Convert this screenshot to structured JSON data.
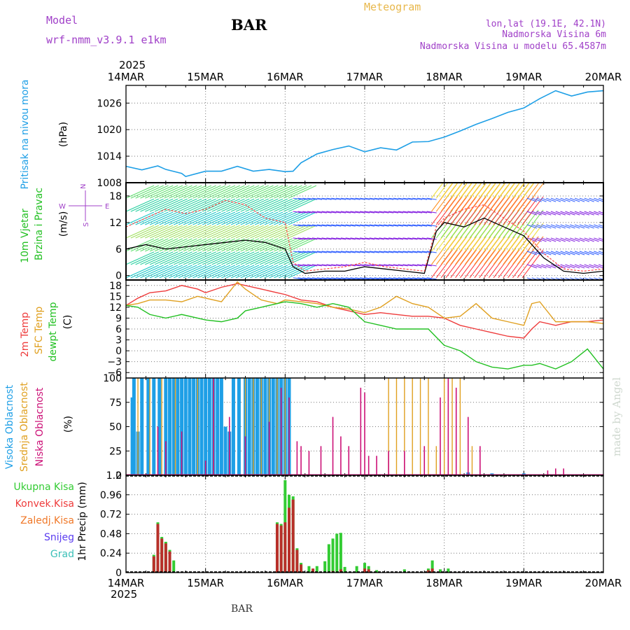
{
  "header": {
    "model_label": "Model",
    "model_name": "wrf-nmm_v3.9.1 e1km",
    "station": "BAR",
    "chart_title": "Meteogram",
    "coords": "lon,lat (19.1E, 42.1N)",
    "elevation": "Nadmorska Visina 6m",
    "model_elevation": "Nadmorska Visina u modelu 65.4587m",
    "footer_station": "BAR",
    "watermark": "made by Angel"
  },
  "colors": {
    "pressure": "#1e9fe6",
    "temp2m": "#ee3b3b",
    "sfc_temp": "#e0a020",
    "dewpt": "#22c022",
    "cloud_high": "#1e9fe6",
    "cloud_mid": "#e0a020",
    "cloud_low": "#cc1177",
    "precip_total": "#33cc33",
    "precip_conv": "#b8302a",
    "label_purple": "#a040c8",
    "label_orange": "#e8b84c"
  },
  "chart_data": [
    {
      "type": "line",
      "panel": "pressure",
      "ylabel": [
        "Pritisak na nivou mora",
        "(hPa)"
      ],
      "ylim": [
        1008,
        1030
      ],
      "yticks": [
        "1008",
        "1014",
        "1020",
        "1026"
      ],
      "x_unit": "days since 14MAR",
      "x": [
        0,
        0.2,
        0.4,
        0.5,
        0.7,
        0.75,
        1.0,
        1.2,
        1.4,
        1.6,
        1.8,
        2.0,
        2.1,
        2.2,
        2.4,
        2.6,
        2.8,
        3.0,
        3.2,
        3.4,
        3.6,
        3.8,
        4.0,
        4.2,
        4.4,
        4.6,
        4.8,
        5.0,
        5.2,
        5.4,
        5.6,
        5.8,
        6.0
      ],
      "series": [
        {
          "name": "Pritisak na nivou mora",
          "values": [
            1011.7,
            1010.9,
            1011.8,
            1011.0,
            1010.1,
            1009.4,
            1010.6,
            1010.6,
            1011.7,
            1010.6,
            1011.0,
            1010.5,
            1010.6,
            1012.5,
            1014.5,
            1015.5,
            1016.3,
            1015.0,
            1015.9,
            1015.4,
            1017.2,
            1017.3,
            1018.3,
            1019.7,
            1021.2,
            1022.5,
            1023.9,
            1024.9,
            1027.0,
            1028.8,
            1027.6,
            1028.5,
            1028.8
          ]
        }
      ]
    },
    {
      "type": "line",
      "panel": "wind",
      "ylabel": [
        "10m Vjetar",
        "Brzina i Pravac",
        "(m/s)"
      ],
      "ylim": [
        -1,
        21
      ],
      "yticks": [
        "0",
        "6",
        "12",
        "18"
      ],
      "compass": [
        "N",
        "W",
        "E",
        "S"
      ],
      "x_unit": "days since 14MAR",
      "x": [
        0,
        0.25,
        0.5,
        0.75,
        1.0,
        1.25,
        1.5,
        1.75,
        2.0,
        2.1,
        2.25,
        2.5,
        2.75,
        3.0,
        3.25,
        3.5,
        3.75,
        3.9,
        4.0,
        4.25,
        4.5,
        4.75,
        5.0,
        5.25,
        5.5,
        5.75,
        6.0
      ],
      "series": [
        {
          "name": "speed",
          "values": [
            6,
            7,
            6,
            6.5,
            7,
            7.5,
            8,
            7.5,
            6,
            2,
            0.5,
            1,
            1,
            2,
            1.5,
            1,
            0.5,
            10,
            12,
            11,
            13,
            11,
            9,
            4,
            1,
            0.5,
            1
          ]
        },
        {
          "name": "gust",
          "values": [
            11,
            13,
            15,
            14,
            15,
            17,
            16,
            13,
            12,
            3,
            1,
            1.5,
            2,
            3,
            2,
            1.5,
            1,
            11,
            13,
            15,
            16,
            13,
            10,
            5,
            1.5,
            1,
            1.5
          ]
        }
      ]
    },
    {
      "type": "line",
      "panel": "temperature",
      "ylabel": [
        "2m Temp",
        "SFC Temp",
        "dewpt Temp",
        "(C)"
      ],
      "ylim": [
        -7.5,
        19.5
      ],
      "yticks": [
        "18",
        "15",
        "12",
        "9",
        "6",
        "3",
        "0",
        "−3",
        "−6"
      ],
      "x_unit": "days since 14MAR",
      "x": [
        0,
        0.15,
        0.3,
        0.5,
        0.7,
        0.9,
        1.0,
        1.2,
        1.4,
        1.5,
        1.7,
        1.9,
        2.0,
        2.2,
        2.4,
        2.6,
        2.8,
        3.0,
        3.2,
        3.4,
        3.6,
        3.8,
        4.0,
        4.2,
        4.4,
        4.6,
        4.8,
        5.0,
        5.1,
        5.2,
        5.4,
        5.6,
        5.8,
        6.0
      ],
      "series": [
        {
          "name": "2m Temp",
          "values": [
            12.5,
            14.5,
            16,
            16.5,
            18,
            17,
            16,
            17.5,
            18.5,
            18,
            17,
            16,
            15.5,
            14,
            13.5,
            12,
            11,
            10,
            10.5,
            10,
            9.5,
            9.5,
            9,
            7,
            6,
            5,
            4,
            3.5,
            6,
            8,
            7,
            8,
            8,
            8.5
          ]
        },
        {
          "name": "SFC Temp",
          "values": [
            12.5,
            13,
            14,
            14,
            13.5,
            15,
            14.5,
            13.5,
            19,
            17,
            14,
            13,
            14,
            13.5,
            13,
            12,
            11.5,
            10.5,
            12,
            15,
            13,
            12,
            9,
            9.5,
            13,
            9,
            8,
            7,
            13,
            13.5,
            8,
            8,
            8,
            7.5
          ]
        },
        {
          "name": "dewpt Temp",
          "values": [
            12.5,
            12,
            10,
            9,
            10,
            9,
            8.5,
            8,
            9,
            11,
            12,
            13,
            13.5,
            13,
            12,
            13,
            12,
            8,
            7,
            6,
            6,
            6,
            1.5,
            0,
            -3,
            -4.5,
            -5,
            -4,
            -4,
            -3.5,
            -5,
            -3,
            0.5,
            -5
          ]
        }
      ]
    },
    {
      "type": "bar",
      "panel": "clouds",
      "ylabel": [
        "Visoka Oblacnost",
        "Srednja Oblacnost",
        "Niska Oblacnost",
        "(%)"
      ],
      "ylim": [
        0,
        100
      ],
      "yticks": [
        "0",
        "25",
        "50",
        "75",
        "100"
      ],
      "x_unit": "days since 14MAR",
      "series": [
        {
          "name": "Visoka Oblacnost",
          "x": [
            0.08,
            0.1,
            0.15,
            0.2,
            0.28,
            0.35,
            0.42,
            0.5,
            0.55,
            0.6,
            0.65,
            0.7,
            0.75,
            0.8,
            0.85,
            0.9,
            0.95,
            1.0,
            1.05,
            1.1,
            1.15,
            1.2,
            1.25,
            1.3,
            1.35,
            1.42,
            1.5,
            1.55,
            1.6,
            1.65,
            1.7,
            1.75,
            1.8,
            1.85,
            1.9,
            1.95,
            2.0,
            2.05,
            4.3,
            4.6,
            5.0
          ],
          "values": [
            80,
            100,
            45,
            100,
            100,
            100,
            100,
            100,
            100,
            100,
            100,
            100,
            100,
            100,
            100,
            100,
            100,
            100,
            100,
            100,
            100,
            100,
            50,
            45,
            100,
            100,
            100,
            100,
            100,
            100,
            100,
            100,
            100,
            100,
            100,
            100,
            100,
            100,
            3,
            2,
            2
          ]
        },
        {
          "name": "Srednja Oblacnost",
          "x": [
            0.15,
            0.3,
            0.45,
            0.62,
            0.9,
            1.1,
            1.3,
            1.5,
            1.6,
            1.7,
            1.8,
            1.9,
            2.0,
            3.3,
            3.4,
            3.5,
            3.6,
            3.7,
            3.8,
            3.9,
            4.0,
            4.1,
            4.2,
            4.35,
            4.45
          ],
          "values": [
            100,
            100,
            100,
            100,
            100,
            100,
            35,
            100,
            100,
            100,
            100,
            100,
            100,
            100,
            100,
            100,
            100,
            100,
            100,
            30,
            100,
            100,
            100,
            30,
            10
          ]
        },
        {
          "name": "Niska Oblacnost",
          "x": [
            0.4,
            0.5,
            0.7,
            1.0,
            1.1,
            1.3,
            1.5,
            1.8,
            1.95,
            2.05,
            2.15,
            2.2,
            2.3,
            2.45,
            2.6,
            2.7,
            2.8,
            2.95,
            3.0,
            3.05,
            3.15,
            3.3,
            3.5,
            3.75,
            3.95,
            4.05,
            4.15,
            4.3,
            4.45,
            5.3,
            5.4,
            5.5
          ],
          "values": [
            50,
            35,
            45,
            15,
            100,
            60,
            40,
            55,
            90,
            80,
            35,
            30,
            25,
            30,
            60,
            40,
            30,
            90,
            85,
            20,
            20,
            25,
            25,
            30,
            80,
            100,
            90,
            60,
            30,
            5,
            7,
            7
          ]
        }
      ]
    },
    {
      "type": "bar",
      "panel": "precipitation",
      "ylabel": [
        "1hr Precip (mm)"
      ],
      "legend": [
        "Ukupna Kisa",
        "Konvek.Kisa",
        "Zaledj.Kisa",
        "Snijeg",
        "Grad"
      ],
      "ylim": [
        0,
        1.2
      ],
      "yticks": [
        "0",
        "0.24",
        "0.48",
        "0.72",
        "0.96",
        "1.2"
      ],
      "x_unit": "days since 14MAR",
      "series": [
        {
          "name": "Ukupna Kisa",
          "x": [
            0.35,
            0.4,
            0.45,
            0.5,
            0.55,
            0.6,
            1.9,
            1.95,
            2.0,
            2.05,
            2.1,
            2.15,
            2.2,
            2.3,
            2.4,
            2.5,
            2.55,
            2.6,
            2.65,
            2.7,
            2.75,
            2.9,
            3.0,
            3.05,
            3.15,
            3.5,
            3.8,
            3.85,
            3.95,
            4.05
          ],
          "values": [
            0.22,
            0.62,
            0.44,
            0.38,
            0.28,
            0.15,
            0.62,
            0.6,
            1.14,
            0.96,
            0.94,
            0.3,
            0.12,
            0.08,
            0.08,
            0.14,
            0.35,
            0.42,
            0.48,
            0.49,
            0.07,
            0.08,
            0.12,
            0.08,
            0.03,
            0.04,
            0.05,
            0.15,
            0.04,
            0.05
          ]
        },
        {
          "name": "Konvek.Kisa",
          "x": [
            0.35,
            0.4,
            0.45,
            0.5,
            0.55,
            1.9,
            1.95,
            2.0,
            2.05,
            2.1,
            2.15,
            2.2,
            2.35,
            2.6,
            2.7,
            3.0,
            3.05,
            3.8,
            3.85
          ],
          "values": [
            0.2,
            0.6,
            0.42,
            0.36,
            0.26,
            0.6,
            0.58,
            0.62,
            0.8,
            0.9,
            0.28,
            0.1,
            0.05,
            0.02,
            0.04,
            0.05,
            0.04,
            0.03,
            0.05
          ]
        }
      ]
    }
  ],
  "x_axis": {
    "top_year": "2025",
    "bottom_year": "2025",
    "labels": [
      "14MAR",
      "15MAR",
      "16MAR",
      "17MAR",
      "18MAR",
      "19MAR",
      "20MAR"
    ]
  }
}
